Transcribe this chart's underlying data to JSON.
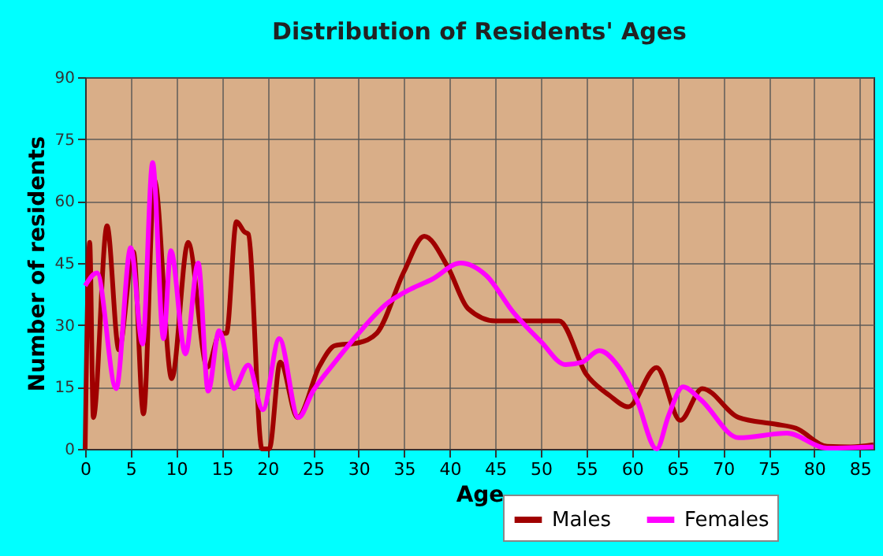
{
  "chart_data": {
    "type": "line",
    "title": "Distribution of Residents' Ages",
    "xlabel": "Age",
    "ylabel": "Number of residents",
    "xlim": [
      0,
      86.5
    ],
    "xticks": [
      0,
      5,
      10,
      15,
      20,
      25,
      30,
      35,
      40,
      45,
      50,
      55,
      60,
      65,
      70,
      75,
      80,
      85
    ],
    "ylim": [
      0,
      90
    ],
    "yticks": [
      0,
      15,
      30,
      45,
      60,
      75,
      90
    ],
    "grid": true,
    "legend": "bottom right",
    "marker": "none",
    "line_style": "solid",
    "series": [
      {
        "name": "Males",
        "color": "#a00000",
        "x": [
          0,
          0.5,
          0.9,
          2.4,
          3.7,
          5.3,
          6.4,
          7.6,
          9.5,
          11.3,
          13.4,
          14.8,
          15.5,
          16.6,
          17.5,
          17.9,
          19.4,
          20.2,
          21.4,
          23.3,
          25.7,
          27.4,
          30,
          32,
          35,
          37.2,
          39.8,
          42,
          45,
          48,
          50,
          52,
          55,
          57.5,
          59.6,
          62.7,
          65.3,
          67.7,
          71.7,
          75.7,
          78,
          81.4,
          84,
          86.5
        ],
        "values": [
          0,
          50,
          7.6,
          54,
          24,
          47.7,
          8.5,
          65,
          17,
          50,
          19.8,
          28,
          28,
          55,
          52.5,
          52,
          0,
          0,
          21,
          7.6,
          20,
          25,
          25.7,
          28,
          43,
          51.5,
          44,
          34,
          31,
          31,
          31,
          31,
          18,
          13,
          10.2,
          19.7,
          6.9,
          14.6,
          7.6,
          6,
          5,
          0.6,
          0.5,
          1
        ]
      },
      {
        "name": "Females",
        "color": "#ff00ff",
        "x": [
          0,
          1.3,
          3.4,
          5,
          6.3,
          7.4,
          8.6,
          9.4,
          11,
          12.4,
          13.5,
          14.7,
          16.3,
          17.9,
          19.5,
          21.3,
          23.4,
          25,
          27.4,
          30,
          33,
          36,
          38,
          41.2,
          44,
          47,
          50,
          52.7,
          54.5,
          56.4,
          58.5,
          60.5,
          62.7,
          64,
          65.6,
          67.5,
          71.7,
          77,
          81.4,
          84,
          86.5
        ],
        "values": [
          39.5,
          42.6,
          14.6,
          48.7,
          25.4,
          69.3,
          26.7,
          48,
          23,
          45,
          14,
          28.6,
          14.6,
          20.3,
          9.5,
          26.7,
          7.6,
          14,
          21,
          28,
          35,
          39,
          41,
          45,
          42,
          33,
          26,
          20.4,
          21,
          23.8,
          20,
          12,
          0,
          8,
          15,
          12,
          2.7,
          3.8,
          0.2,
          0.3,
          0.5
        ]
      }
    ]
  }
}
